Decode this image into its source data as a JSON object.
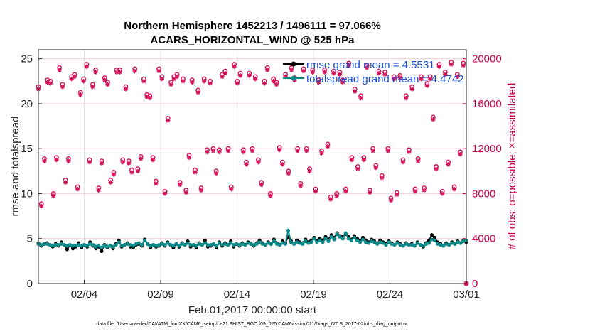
{
  "chart_data": {
    "type": "line",
    "title_line1": "Northern Hemisphere 1452213 / 1496111 = 97.066%",
    "title_line2": "ACARS_HORIZONTAL_WIND @ 525 hPa",
    "xlabel": "Feb.01,2017 00:00:00 start",
    "ylabel_left": "rmse and totalspread",
    "ylabel_right": "# of obs: o=possible; ×=assimilated",
    "footer": "data file: /Users/raeder/DAI/ATM_forcXX/CAM6_setup/f.e21.FHIST_BGC.f09_025.CAM6assim.011/Diags_NTrS_2017-02/obs_diag_output.nc",
    "x_range_days": [
      1,
      29
    ],
    "ylim_left": [
      0,
      26
    ],
    "ylim_right": [
      0,
      20800
    ],
    "x_ticks": [
      {
        "day": 4,
        "label": "02/04"
      },
      {
        "day": 9,
        "label": "02/09"
      },
      {
        "day": 14,
        "label": "02/14"
      },
      {
        "day": 19,
        "label": "02/19"
      },
      {
        "day": 24,
        "label": "02/24"
      },
      {
        "day": 29,
        "label": "03/01"
      }
    ],
    "y_ticks_left": [
      {
        "v": 0,
        "label": "0"
      },
      {
        "v": 5,
        "label": "5"
      },
      {
        "v": 10,
        "label": "10"
      },
      {
        "v": 15,
        "label": "15"
      },
      {
        "v": 20,
        "label": "20"
      },
      {
        "v": 25,
        "label": "25"
      }
    ],
    "y_ticks_right": [
      {
        "v": 0,
        "label": "0"
      },
      {
        "v": 4000,
        "label": "4000"
      },
      {
        "v": 8000,
        "label": "8000"
      },
      {
        "v": 12000,
        "label": "12000"
      },
      {
        "v": 16000,
        "label": "16000"
      },
      {
        "v": 20000,
        "label": "20000"
      }
    ],
    "legend": [
      {
        "label": "rmse grand mean = 4.5531",
        "color": "#000000"
      },
      {
        "label": "totalspread grand mean = 4.4742",
        "color": "#0b8a8a"
      }
    ],
    "colors": {
      "rmse": "#000000",
      "spread": "#0b8a8a",
      "obs": "#d4145a"
    },
    "series": [
      {
        "name": "rmse",
        "values": [
          4.5,
          4.2,
          4.4,
          4.5,
          4.3,
          4.1,
          4.4,
          4.2,
          4.6,
          4.3,
          3.8,
          4.3,
          3.9,
          4.1,
          4.5,
          4.0,
          4.3,
          4.1,
          4.6,
          4.2,
          3.9,
          4.1,
          3.6,
          4.3,
          4.0,
          4.2,
          3.9,
          4.4,
          4.8,
          4.1,
          4.3,
          4.5,
          4.1,
          4.0,
          4.3,
          4.4,
          4.2,
          4.9,
          4.4,
          4.0,
          4.3,
          4.1,
          4.2,
          4.5,
          4.2,
          4.6,
          4.3,
          4.0,
          4.4,
          4.1,
          4.5,
          4.3,
          4.7,
          4.1,
          4.3,
          4.0,
          4.5,
          4.3,
          4.8,
          4.1,
          4.2,
          4.4,
          4.0,
          4.6,
          4.2,
          4.5,
          4.3,
          4.7,
          4.1,
          4.4,
          4.2,
          4.5,
          4.3,
          4.6,
          4.4,
          4.2,
          4.5,
          4.8,
          4.5,
          4.3,
          4.6,
          4.4,
          4.9,
          4.5,
          4.3,
          4.7,
          4.5,
          5.2,
          4.7,
          4.4,
          4.8,
          4.6,
          4.5,
          4.9,
          4.6,
          4.8,
          5.1,
          4.7,
          5.0,
          4.8,
          5.2,
          4.9,
          5.4,
          5.1,
          5.6,
          5.3,
          5.2,
          5.5,
          5.2,
          4.9,
          5.3,
          5.0,
          4.8,
          5.1,
          4.8,
          4.6,
          4.9,
          4.7,
          4.5,
          4.8,
          4.6,
          4.4,
          4.7,
          4.5,
          4.3,
          4.6,
          4.4,
          4.2,
          4.5,
          4.3,
          4.4,
          4.2,
          4.6,
          4.3,
          4.1,
          4.5,
          4.8,
          5.4,
          5.1,
          4.6,
          4.4,
          4.2,
          4.5,
          4.3,
          4.6,
          4.4,
          4.7,
          4.5,
          4.8,
          4.6
        ]
      },
      {
        "name": "totalspread",
        "values": [
          4.4,
          4.3,
          4.4,
          4.4,
          4.3,
          4.2,
          4.3,
          4.3,
          4.4,
          4.3,
          4.2,
          4.3,
          4.2,
          4.2,
          4.3,
          4.2,
          4.3,
          4.2,
          4.4,
          4.3,
          4.1,
          4.2,
          4.0,
          4.2,
          4.1,
          4.2,
          4.1,
          4.3,
          4.6,
          4.2,
          4.3,
          4.4,
          4.3,
          4.2,
          4.4,
          4.5,
          4.3,
          4.8,
          4.4,
          4.2,
          4.3,
          4.2,
          4.3,
          4.4,
          4.3,
          4.5,
          4.3,
          4.2,
          4.4,
          4.2,
          4.4,
          4.3,
          4.5,
          4.3,
          4.3,
          4.2,
          4.4,
          4.3,
          4.5,
          4.3,
          4.3,
          4.4,
          4.2,
          4.5,
          4.3,
          4.4,
          4.3,
          4.5,
          4.3,
          4.4,
          4.3,
          4.4,
          4.3,
          4.5,
          4.4,
          4.3,
          4.4,
          4.6,
          4.4,
          4.3,
          4.5,
          4.4,
          4.7,
          4.4,
          4.3,
          4.5,
          4.4,
          5.9,
          4.6,
          4.4,
          4.6,
          4.5,
          4.4,
          4.7,
          4.5,
          4.6,
          5.0,
          4.6,
          4.8,
          4.6,
          5.0,
          4.7,
          5.2,
          4.9,
          5.5,
          5.2,
          5.0,
          5.6,
          5.0,
          4.8,
          5.1,
          4.8,
          4.6,
          4.9,
          4.6,
          4.5,
          4.7,
          4.6,
          4.4,
          4.6,
          4.5,
          4.3,
          4.6,
          4.4,
          4.3,
          4.5,
          4.3,
          4.2,
          4.4,
          4.3,
          4.3,
          4.2,
          4.5,
          4.3,
          4.2,
          4.4,
          4.5,
          4.9,
          4.8,
          4.4,
          4.3,
          4.2,
          4.4,
          4.3,
          4.5,
          4.4,
          4.6,
          4.5,
          4.7,
          4.8
        ]
      },
      {
        "name": "obs_possible",
        "values": [
          17500,
          7100,
          11100,
          18100,
          18000,
          8000,
          11200,
          19200,
          17700,
          9200,
          11100,
          18400,
          18600,
          8600,
          17000,
          18200,
          19500,
          11000,
          17700,
          19000,
          8500,
          10900,
          18300,
          17900,
          9200,
          9900,
          19000,
          19000,
          11000,
          17500,
          10900,
          10100,
          19100,
          10200,
          11300,
          18200,
          16800,
          16700,
          11200,
          9100,
          19100,
          18400,
          8200,
          14700,
          17900,
          18400,
          18600,
          9000,
          18200,
          8300,
          11400,
          18100,
          10100,
          17200,
          8500,
          18200,
          11900,
          18000,
          12000,
          10000,
          11900,
          18600,
          18900,
          12000,
          8600,
          19500,
          18000,
          18700,
          11900,
          10800,
          18700,
          12000,
          18400,
          11000,
          9000,
          18000,
          19200,
          8000,
          18200,
          17900,
          12100,
          10800,
          18600,
          10000,
          19200,
          18300,
          12000,
          8900,
          19100,
          12000,
          10200,
          19000,
          8400,
          18100,
          11800,
          19000,
          12400,
          7700,
          18900,
          8000,
          18800,
          18100,
          8400,
          19600,
          11200,
          17300,
          10400,
          16700,
          11200,
          19400,
          8300,
          12000,
          10500,
          18900,
          9600,
          18800,
          12000,
          7600,
          18400,
          8100,
          18500,
          11000,
          16700,
          11900,
          17500,
          8400,
          11100,
          18400,
          8500,
          17800,
          18400,
          14800,
          10400,
          19500,
          8200,
          18800,
          10800,
          19700,
          8600,
          18600,
          11700,
          19600,
          0
        ]
      },
      {
        "name": "obs_assimilated",
        "values": [
          17300,
          6900,
          10900,
          17900,
          17800,
          7800,
          11000,
          19000,
          17500,
          9000,
          10900,
          18200,
          18400,
          8400,
          16800,
          18000,
          19300,
          10800,
          17500,
          18800,
          8300,
          10700,
          18100,
          17700,
          9000,
          9700,
          18800,
          18800,
          10800,
          17300,
          10700,
          9900,
          18900,
          10000,
          11100,
          18000,
          16600,
          16500,
          11000,
          8900,
          18900,
          18200,
          8000,
          14500,
          17700,
          18200,
          18400,
          8800,
          18000,
          8100,
          11200,
          17900,
          9900,
          17000,
          8300,
          18000,
          11700,
          17800,
          11800,
          9800,
          11700,
          18400,
          18700,
          11800,
          8400,
          19300,
          17800,
          18500,
          11700,
          10600,
          18500,
          11800,
          18200,
          10800,
          8800,
          17800,
          19000,
          7800,
          18000,
          17700,
          11900,
          10600,
          18400,
          9800,
          19000,
          18100,
          11800,
          8700,
          18900,
          11800,
          10000,
          18800,
          8200,
          17900,
          11600,
          18800,
          12200,
          7500,
          18700,
          7800,
          18600,
          17900,
          8200,
          19400,
          11000,
          17100,
          10200,
          16500,
          11000,
          19200,
          8100,
          11800,
          10300,
          18700,
          9400,
          18600,
          11800,
          7400,
          18200,
          7900,
          18300,
          10800,
          16500,
          11700,
          17300,
          8200,
          10900,
          18200,
          8300,
          17600,
          18200,
          14600,
          10200,
          19300,
          8000,
          18600,
          10600,
          19500,
          8400,
          18400,
          11500,
          19400,
          0
        ]
      }
    ]
  }
}
